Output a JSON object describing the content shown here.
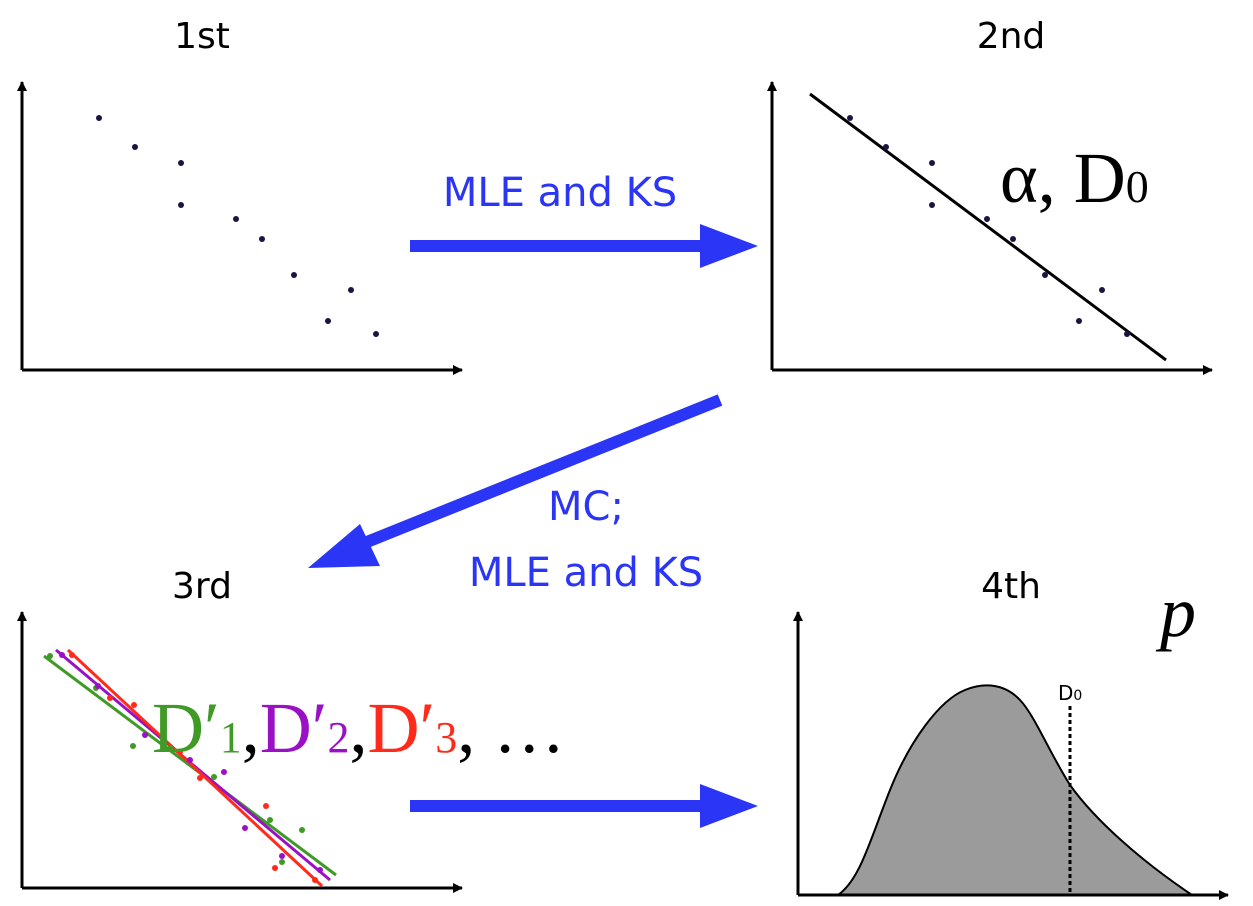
{
  "panels": {
    "first": {
      "label": "1st"
    },
    "second": {
      "label": "2nd",
      "params": "α, D",
      "params_sub": "0"
    },
    "third": {
      "label": "3rd",
      "stats": [
        {
          "text": "D′",
          "sub": "1",
          "sep": ",",
          "color": "#3f9a26"
        },
        {
          "text": "D′",
          "sub": "2",
          "sep": ",",
          "color": "#9a10c4"
        },
        {
          "text": "D′",
          "sub": "3",
          "sep": ", …",
          "color": "#ff2a1a"
        }
      ]
    },
    "fourth": {
      "label": "4th",
      "p_symbol": "p",
      "marker": "D",
      "marker_sub": "0"
    }
  },
  "arrows": {
    "first_to_second": {
      "text": "MLE and KS"
    },
    "second_to_third": {
      "line1": "MC;",
      "line2": "MLE and KS"
    },
    "third_to_fourth": {
      "text": ""
    }
  },
  "colors": {
    "arrow": "#2b35f5",
    "axis": "#000000",
    "dots": "#1a1440",
    "histogram_fill": "#9b9b9b",
    "green": "#3f9a26",
    "purple": "#9a10c4",
    "red": "#ff2a1a"
  }
}
